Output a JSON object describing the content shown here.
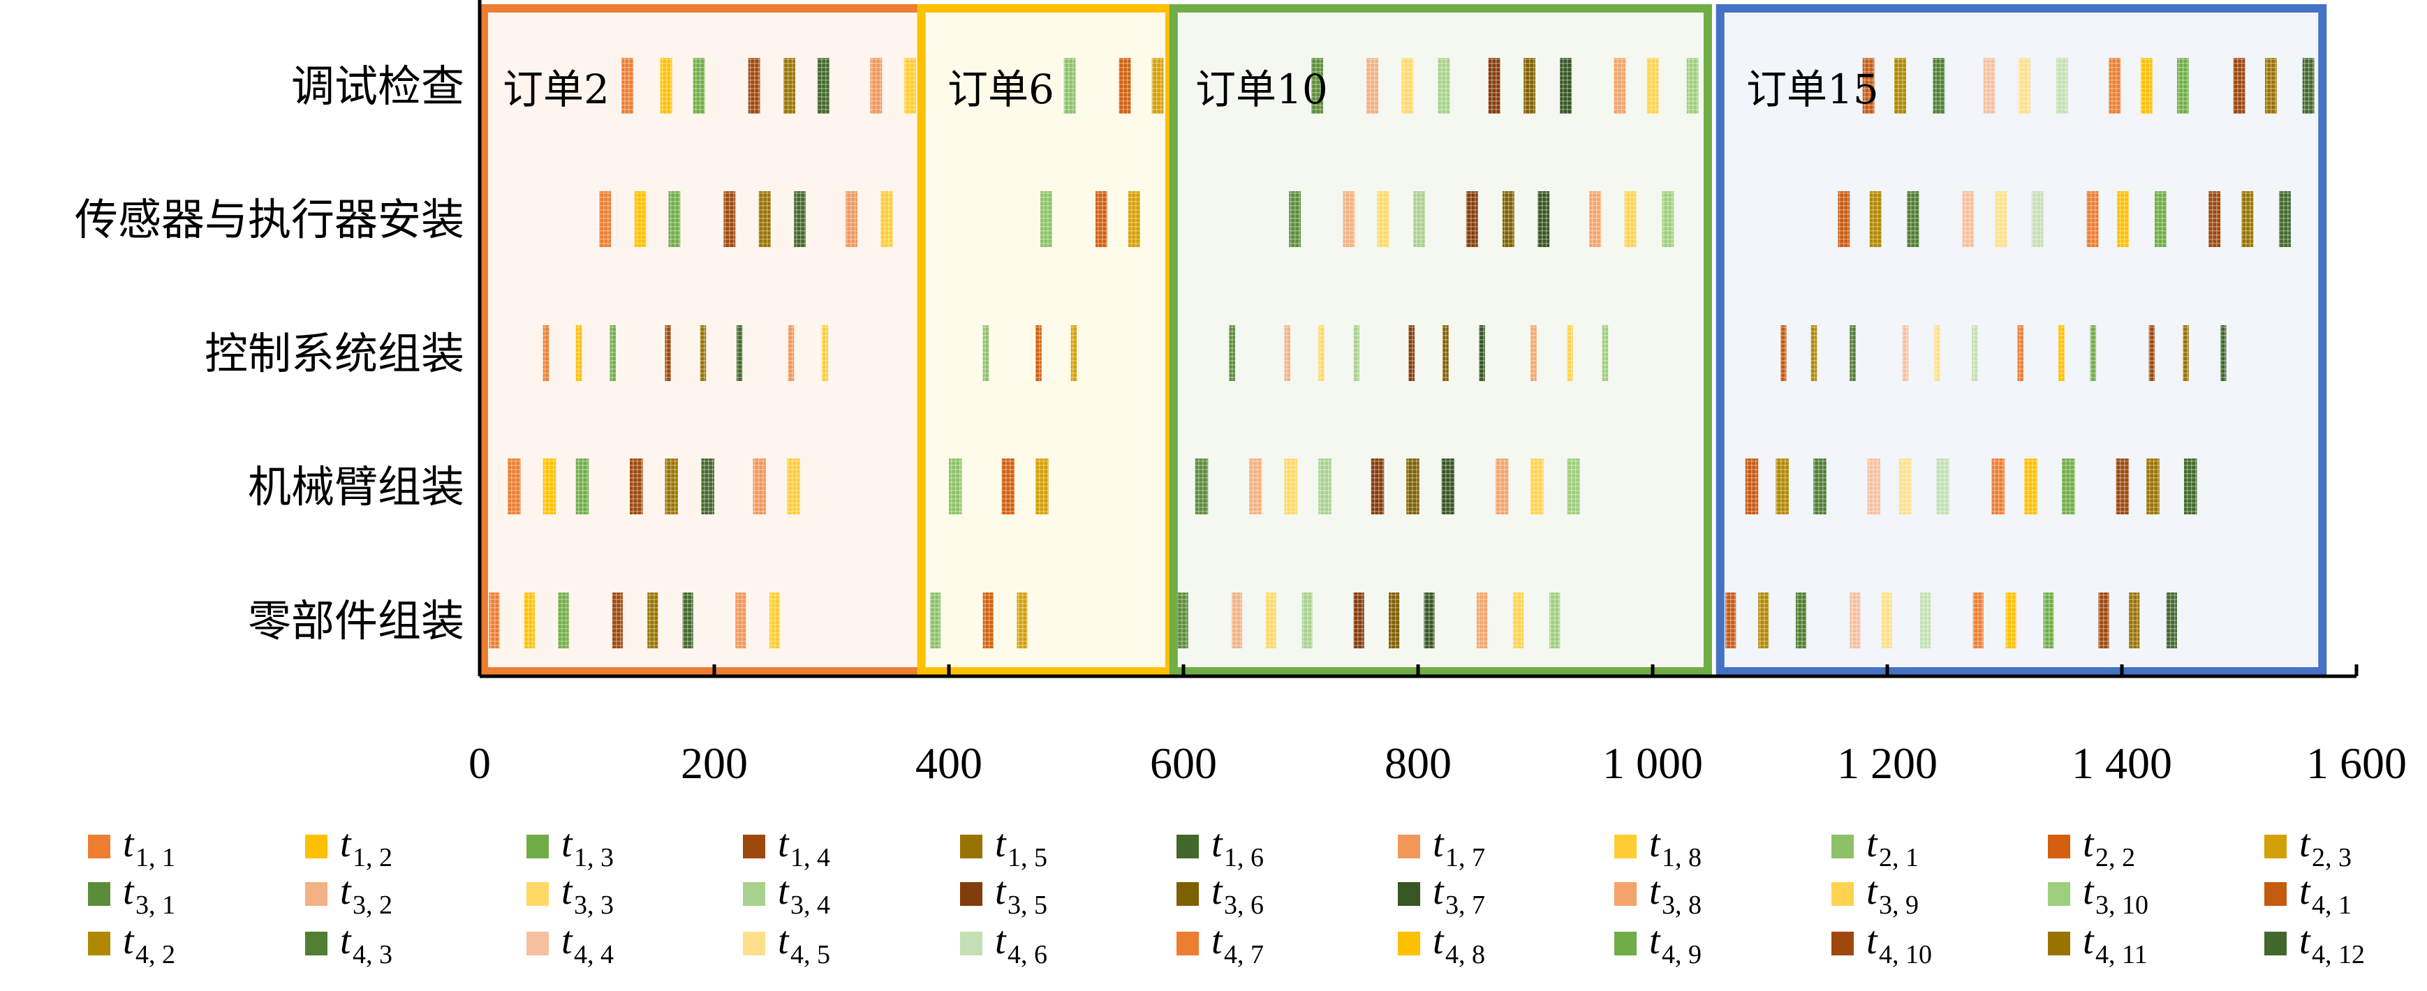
{
  "chart_data": {
    "type": "gantt",
    "title": "",
    "xlabel": "",
    "ylabel": "",
    "xlim": [
      0,
      1600
    ],
    "xticks": [
      "0",
      "200",
      "400",
      "600",
      "800",
      "1 000",
      "1 200",
      "1 400",
      "1 600"
    ],
    "xtick_values": [
      0,
      200,
      400,
      600,
      800,
      1000,
      1200,
      1400,
      1600
    ],
    "legend_base": "t",
    "legend_placement": "bottom",
    "tasks": [
      {
        "sub": "1, 1",
        "color": "#ED7D31"
      },
      {
        "sub": "1, 2",
        "color": "#FFC000"
      },
      {
        "sub": "1, 3",
        "color": "#70AD47"
      },
      {
        "sub": "1, 4",
        "color": "#9E480E"
      },
      {
        "sub": "1, 5",
        "color": "#997300"
      },
      {
        "sub": "1, 6",
        "color": "#43682B"
      },
      {
        "sub": "1, 7",
        "color": "#F1975A"
      },
      {
        "sub": "1, 8",
        "color": "#FFCD33"
      },
      {
        "sub": "2, 1",
        "color": "#8CC168"
      },
      {
        "sub": "2, 2",
        "color": "#D2600F"
      },
      {
        "sub": "2, 3",
        "color": "#D4A00A"
      },
      {
        "sub": "3, 1",
        "color": "#5B8C3A"
      },
      {
        "sub": "3, 2",
        "color": "#F4B183"
      },
      {
        "sub": "3, 3",
        "color": "#FFD966"
      },
      {
        "sub": "3, 4",
        "color": "#A9D18E"
      },
      {
        "sub": "3, 5",
        "color": "#843C0C"
      },
      {
        "sub": "3, 6",
        "color": "#7F6000"
      },
      {
        "sub": "3, 7",
        "color": "#375623"
      },
      {
        "sub": "3, 8",
        "color": "#F4A46A"
      },
      {
        "sub": "3, 9",
        "color": "#FFD34F"
      },
      {
        "sub": "3, 10",
        "color": "#9DCF7C"
      },
      {
        "sub": "4, 1",
        "color": "#C55A11"
      },
      {
        "sub": "4, 2",
        "color": "#B08800"
      },
      {
        "sub": "4, 3",
        "color": "#507E32"
      },
      {
        "sub": "4, 4",
        "color": "#F6C0A0"
      },
      {
        "sub": "4, 5",
        "color": "#FFE08A"
      },
      {
        "sub": "4, 6",
        "color": "#C5E0B4"
      },
      {
        "sub": "4, 7",
        "color": "#ED7D31"
      },
      {
        "sub": "4, 8",
        "color": "#FFC000"
      },
      {
        "sub": "4, 9",
        "color": "#70AD47"
      },
      {
        "sub": "4, 10",
        "color": "#9E480E"
      },
      {
        "sub": "4, 11",
        "color": "#997300"
      },
      {
        "sub": "4, 12",
        "color": "#43682B"
      }
    ],
    "rows": [
      {
        "label": "调试检查",
        "duration": 10,
        "starts": [
          121,
          154,
          182,
          229,
          259,
          288,
          333,
          362,
          498,
          545,
          573,
          709,
          756,
          786,
          817,
          860,
          890,
          921,
          967,
          995,
          1029,
          1179,
          1206,
          1239,
          1282,
          1312,
          1344,
          1389,
          1416,
          1447,
          1495,
          1522,
          1554
        ]
      },
      {
        "label": "传感器与执行器安装",
        "duration": 10,
        "starts": [
          102,
          132,
          161,
          208,
          238,
          268,
          312,
          342,
          478,
          525,
          553,
          690,
          736,
          765,
          796,
          841,
          872,
          902,
          946,
          976,
          1008,
          1158,
          1185,
          1217,
          1264,
          1292,
          1323,
          1370,
          1396,
          1428,
          1474,
          1502,
          1534
        ]
      },
      {
        "label": "控制系统组装",
        "duration": 5,
        "starts": [
          54,
          82,
          111,
          158,
          188,
          219,
          263,
          292,
          429,
          474,
          504,
          639,
          686,
          715,
          745,
          792,
          821,
          852,
          896,
          927,
          957,
          1109,
          1135,
          1168,
          1213,
          1240,
          1272,
          1311,
          1346,
          1373,
          1423,
          1452,
          1484
        ]
      },
      {
        "label": "机械臂组装",
        "duration": 11,
        "starts": [
          24,
          54,
          82,
          128,
          158,
          189,
          233,
          262,
          400,
          445,
          474,
          610,
          656,
          686,
          715,
          760,
          790,
          820,
          866,
          896,
          927,
          1079,
          1105,
          1137,
          1183,
          1210,
          1242,
          1289,
          1317,
          1349,
          1395,
          1421,
          1453
        ]
      },
      {
        "label": "零部件组装",
        "duration": 9,
        "starts": [
          8,
          38,
          67,
          113,
          143,
          173,
          218,
          247,
          384,
          429,
          458,
          595,
          641,
          670,
          701,
          745,
          775,
          805,
          850,
          881,
          912,
          1062,
          1090,
          1122,
          1168,
          1195,
          1228,
          1273,
          1301,
          1333,
          1380,
          1406,
          1438
        ]
      }
    ],
    "orders": [
      {
        "label": "订单2",
        "range": [
          0,
          378
        ],
        "color": "#ED7D31",
        "fill": "#FDF5EE"
      },
      {
        "label": "订单6",
        "range": [
          373,
          588
        ],
        "color": "#FFC000",
        "fill": "#FFFBEA"
      },
      {
        "label": "订单10",
        "range": [
          588,
          1047
        ],
        "color": "#70AD47",
        "fill": "#F5F8F1"
      },
      {
        "label": "订单15",
        "range": [
          1054,
          1571
        ],
        "color": "#4472C4",
        "fill": "#F2F5FA"
      }
    ]
  }
}
